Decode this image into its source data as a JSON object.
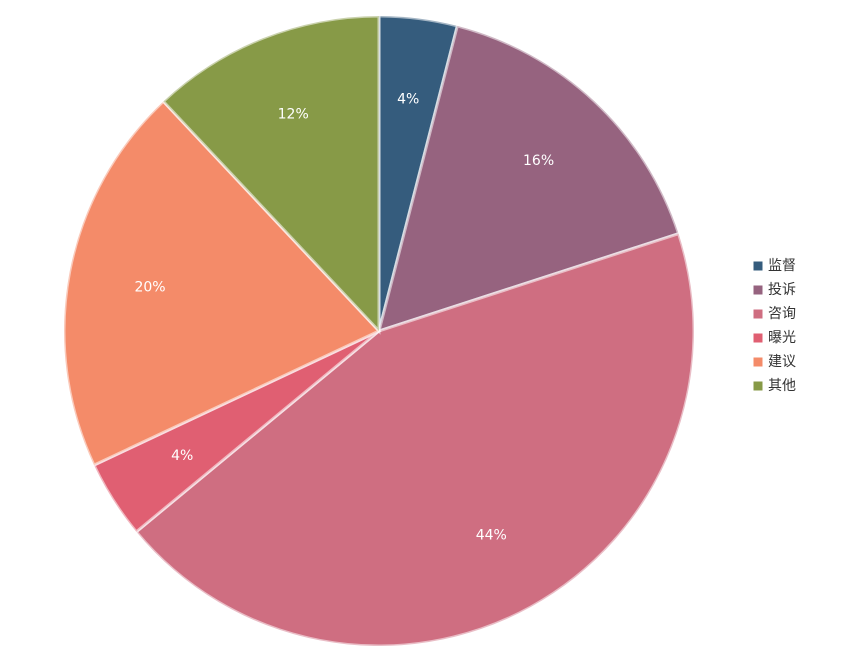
{
  "chart_data": {
    "type": "pie",
    "categories": [
      "监督",
      "投诉",
      "咨询",
      "曝光",
      "建议",
      "其他"
    ],
    "values": [
      4,
      16,
      44,
      4,
      20,
      12
    ],
    "labels": [
      "4%",
      "16%",
      "44%",
      "4%",
      "20%",
      "12%"
    ],
    "colors": [
      "#355c7d",
      "#96637f",
      "#cf6e81",
      "#e05f72",
      "#f48b69",
      "#879a47"
    ],
    "legend_position": "right",
    "start_direction": "top, clockwise"
  }
}
